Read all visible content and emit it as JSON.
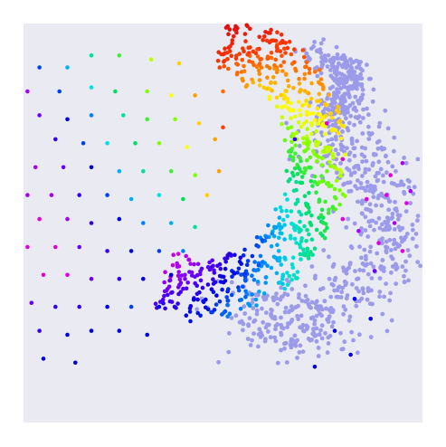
{
  "chart_data": {
    "type": "scatter",
    "title": "",
    "xlabel": "",
    "ylabel": "",
    "xlim": [
      0,
      100
    ],
    "ylim": [
      0,
      100
    ],
    "grid": false,
    "legend": "none",
    "colors": {
      "plot_background": "#eaeaf2",
      "cloud_point": "#9b9bea",
      "spectrum": [
        "#e000e0",
        "#6a00ff",
        "#0000e0",
        "#0080ff",
        "#00e0e0",
        "#00e060",
        "#80ff00",
        "#ffff00",
        "#ffa000",
        "#ff4000",
        "#e01010"
      ]
    },
    "series": [
      {
        "role": "diffuse-grid",
        "points": [
          [
            4,
            89,
            0.25
          ],
          [
            11,
            89,
            0.35
          ],
          [
            17,
            92,
            0.45
          ],
          [
            24,
            92,
            0.55
          ],
          [
            32,
            91,
            0.65
          ],
          [
            39,
            90,
            0.75
          ],
          [
            1,
            83,
            0.05
          ],
          [
            9,
            83,
            0.25
          ],
          [
            17,
            84,
            0.4
          ],
          [
            23,
            83,
            0.5
          ],
          [
            31,
            83,
            0.6
          ],
          [
            37,
            82,
            0.7
          ],
          [
            43,
            82,
            0.8
          ],
          [
            50,
            83,
            0.85
          ],
          [
            4,
            77,
            0.1
          ],
          [
            11,
            76,
            0.2
          ],
          [
            17,
            77,
            0.3
          ],
          [
            25,
            77,
            0.45
          ],
          [
            31,
            76,
            0.55
          ],
          [
            38,
            76,
            0.6
          ],
          [
            44,
            75,
            0.75
          ],
          [
            50,
            74,
            0.9
          ],
          [
            0,
            70,
            0.05
          ],
          [
            8,
            71,
            0.15
          ],
          [
            15,
            70,
            0.25
          ],
          [
            21,
            70,
            0.4
          ],
          [
            28,
            70,
            0.5
          ],
          [
            34,
            70,
            0.6
          ],
          [
            41,
            69,
            0.7
          ],
          [
            48,
            71,
            0.8
          ],
          [
            3,
            64,
            0.05
          ],
          [
            10,
            64,
            0.1
          ],
          [
            17,
            64,
            0.2
          ],
          [
            24,
            63,
            0.35
          ],
          [
            30,
            63,
            0.45
          ],
          [
            37,
            63,
            0.55
          ],
          [
            43,
            62,
            0.6
          ],
          [
            49,
            63,
            0.8
          ],
          [
            1,
            57,
            0.05
          ],
          [
            7,
            57,
            0.05
          ],
          [
            14,
            57,
            0.15
          ],
          [
            21,
            57,
            0.25
          ],
          [
            27,
            56,
            0.35
          ],
          [
            34,
            57,
            0.4
          ],
          [
            40,
            56,
            0.5
          ],
          [
            46,
            57,
            0.75
          ],
          [
            4,
            51,
            0.0
          ],
          [
            11,
            51,
            0.05
          ],
          [
            17,
            50,
            0.15
          ],
          [
            24,
            51,
            0.2
          ],
          [
            30,
            50,
            0.3
          ],
          [
            37,
            50,
            0.35
          ],
          [
            43,
            49,
            0.45
          ],
          [
            1,
            44,
            0.0
          ],
          [
            8,
            44,
            0.0
          ],
          [
            14,
            44,
            0.1
          ],
          [
            21,
            43,
            0.15
          ],
          [
            27,
            43,
            0.2
          ],
          [
            34,
            43,
            0.25
          ],
          [
            40,
            43,
            0.3
          ],
          [
            5,
            37,
            0.0
          ],
          [
            11,
            37,
            0.0
          ],
          [
            17,
            36,
            0.1
          ],
          [
            24,
            36,
            0.15
          ],
          [
            30,
            36,
            0.2
          ],
          [
            37,
            37,
            0.2
          ],
          [
            2,
            30,
            0.1
          ],
          [
            8,
            29,
            0.15
          ],
          [
            14,
            29,
            0.15
          ],
          [
            21,
            29,
            0.2
          ],
          [
            27,
            29,
            0.25
          ],
          [
            34,
            29,
            0.2
          ],
          [
            4,
            23,
            0.15
          ],
          [
            11,
            22,
            0.2
          ],
          [
            17,
            23,
            0.2
          ],
          [
            24,
            23,
            0.2
          ],
          [
            31,
            22,
            0.2
          ],
          [
            5,
            16,
            0.2
          ],
          [
            13,
            15,
            0.2
          ],
          [
            80,
            51,
            0.0
          ],
          [
            84,
            48,
            0.05
          ],
          [
            86,
            56,
            0.0
          ],
          [
            89,
            45,
            0.0
          ],
          [
            93,
            50,
            0.05
          ],
          [
            92,
            62,
            0.0
          ],
          [
            88,
            38,
            0.1
          ],
          [
            95,
            43,
            0.0
          ],
          [
            91,
            57,
            0.0
          ],
          [
            80,
            66,
            0.0
          ],
          [
            76,
            75,
            0.0
          ],
          [
            83,
            31,
            0.2
          ],
          [
            96,
            55,
            0.0
          ],
          [
            87,
            26,
            0.2
          ],
          [
            95,
            65,
            0.05
          ],
          [
            78,
            23,
            0.2
          ],
          [
            73,
            14,
            0.2
          ],
          [
            82,
            17,
            0.2
          ],
          [
            68,
            71,
            0.15
          ],
          [
            97,
            58,
            0.05
          ]
        ]
      },
      {
        "role": "crescent",
        "params": {
          "cx": 45,
          "cy": 65,
          "radius_x": 29,
          "radius_y": 31,
          "start_angle": 80,
          "end_angle": -110,
          "thickness": 7
        }
      },
      {
        "role": "cloud",
        "params": {
          "spine": [
            [
              73,
              91
            ],
            [
              79,
              89
            ],
            [
              83,
              86
            ],
            [
              80,
              80
            ],
            [
              76,
              75
            ],
            [
              79,
              69
            ],
            [
              86,
              64
            ],
            [
              92,
              57
            ],
            [
              94,
              50
            ],
            [
              90,
              42
            ],
            [
              84,
              34
            ],
            [
              77,
              27
            ],
            [
              70,
              24
            ],
            [
              62,
              26
            ],
            [
              55,
              29
            ]
          ],
          "spread": 5
        }
      }
    ]
  }
}
